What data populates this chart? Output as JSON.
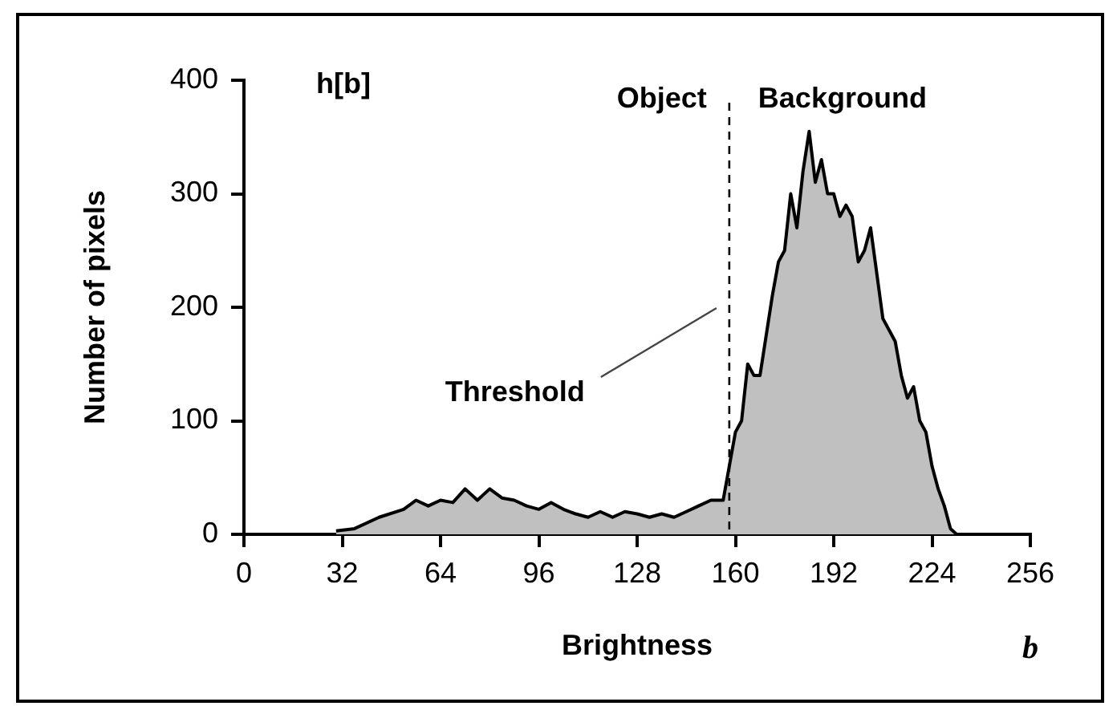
{
  "chart_data": {
    "type": "area",
    "xlabel": "Brightness",
    "ylabel": "Number of pixels",
    "x": [
      30,
      36,
      44,
      52,
      56,
      60,
      64,
      68,
      72,
      76,
      80,
      84,
      88,
      92,
      96,
      100,
      104,
      108,
      112,
      116,
      120,
      124,
      128,
      132,
      136,
      140,
      144,
      148,
      152,
      156,
      158,
      160,
      162,
      164,
      166,
      168,
      172,
      174,
      176,
      178,
      180,
      182,
      184,
      186,
      188,
      190,
      192,
      194,
      196,
      198,
      200,
      202,
      204,
      206,
      208,
      210,
      212,
      214,
      216,
      218,
      220,
      222,
      224,
      226,
      228,
      230,
      232
    ],
    "series": [
      {
        "color": "#c0c0c0",
        "values": [
          3,
          5,
          15,
          22,
          30,
          25,
          30,
          28,
          40,
          30,
          40,
          32,
          30,
          25,
          22,
          28,
          22,
          18,
          15,
          20,
          15,
          20,
          18,
          15,
          18,
          15,
          20,
          25,
          30,
          30,
          60,
          90,
          100,
          150,
          140,
          140,
          210,
          240,
          250,
          300,
          270,
          320,
          355,
          310,
          330,
          300,
          300,
          280,
          290,
          280,
          240,
          250,
          270,
          230,
          190,
          180,
          170,
          140,
          120,
          130,
          100,
          90,
          60,
          40,
          25,
          5,
          0
        ]
      }
    ],
    "xlim": [
      0,
      256
    ],
    "xticks": [
      0,
      32,
      64,
      96,
      128,
      160,
      192,
      224,
      256
    ],
    "ylim": [
      0,
      400
    ],
    "yticks": [
      0,
      100,
      200,
      300,
      400
    ],
    "grid": false,
    "marker": "none",
    "line_style": "solid",
    "ref_lines": [
      {
        "axis": "x",
        "value": 158,
        "label": "Threshold",
        "color": "#000000",
        "line_style": "dashed"
      }
    ],
    "annotations": [
      "h[b]",
      "Object",
      "Background",
      "b"
    ]
  }
}
